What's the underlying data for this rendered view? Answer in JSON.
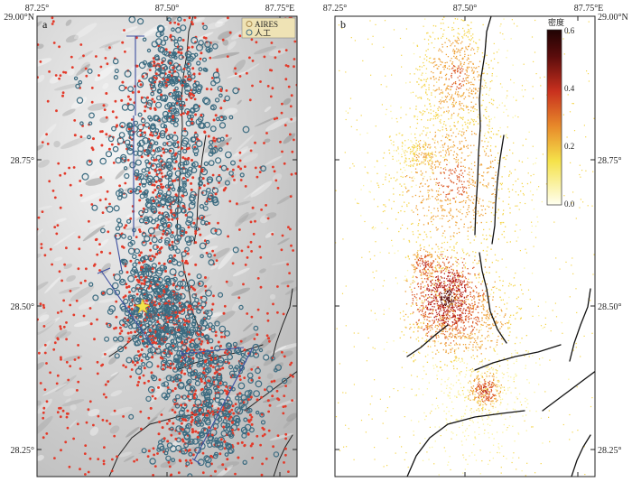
{
  "panels": [
    {
      "letter": "a",
      "legend": {
        "items": [
          {
            "label": "AIRES",
            "color": "#c9a85c"
          },
          {
            "label": "人工",
            "color": "#3e6f89"
          }
        ]
      }
    },
    {
      "letter": "b",
      "colorbar": {
        "title": "密度",
        "ticks": [
          "0.6",
          "0.4",
          "0.2",
          "0.0"
        ],
        "range": [
          0,
          0.6
        ]
      }
    }
  ],
  "axes": {
    "top_ticks": [
      "87.25°",
      "87.50°",
      "87.75°E"
    ],
    "top_ticks_b": [
      "87.25°",
      "87.50°",
      "87.75°E"
    ],
    "left_ticks": [
      "29.00°N",
      "28.75°",
      "28.50°",
      "28.25°"
    ],
    "right_ticks": [
      "29.00°N",
      "28.75°",
      "28.50°",
      "28.25°"
    ],
    "x_range": [
      87.25,
      87.75
    ],
    "y_range": [
      28.2,
      29.0
    ]
  },
  "colors": {
    "event_red": "#e33a2a",
    "event_blue": "#3b6b80",
    "fault": "#111111",
    "profile": "#3d4fa0",
    "epicenter_star": "#f3e34a",
    "colormap": [
      "#fffff0",
      "#f5e24a",
      "#e7892a",
      "#c8301e",
      "#5a0c0c",
      "#200303"
    ]
  }
}
